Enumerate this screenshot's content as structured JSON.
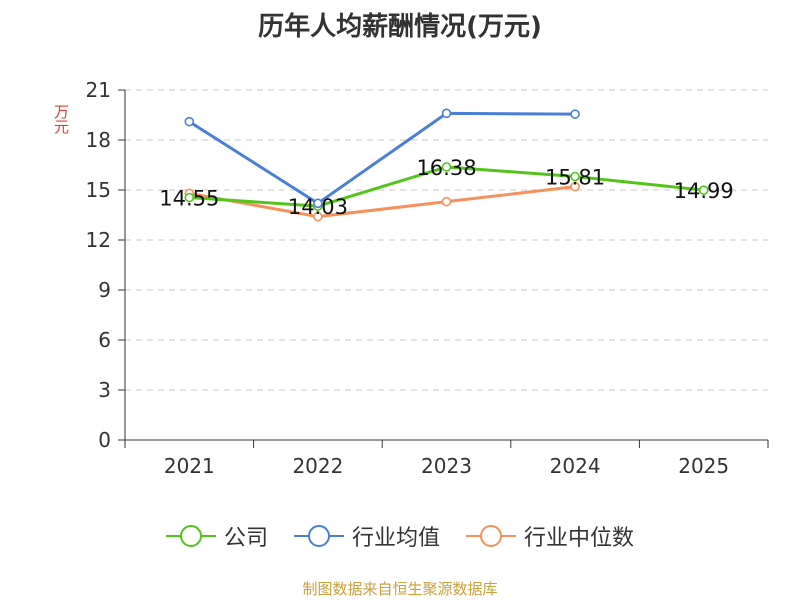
{
  "chart_data": {
    "type": "line",
    "title": "历年人均薪酬情况(万元)",
    "ylabel": "万元",
    "xlabel": "",
    "categories": [
      "2021",
      "2022",
      "2023",
      "2024",
      "2025"
    ],
    "ylim": [
      0,
      21
    ],
    "yticks": [
      0,
      3,
      6,
      9,
      12,
      15,
      18,
      21
    ],
    "grid": true,
    "legend_position": "bottom",
    "series": [
      {
        "name": "公司",
        "color": "#52c41a",
        "values": [
          14.55,
          14.03,
          16.38,
          15.81,
          14.99
        ],
        "labels": [
          "14.55",
          "14.03",
          "16.38",
          "15.81",
          "14.99"
        ]
      },
      {
        "name": "行业均值",
        "color": "#4a7fd6",
        "values": [
          19.1,
          14.2,
          19.6,
          19.55,
          null
        ]
      },
      {
        "name": "行业中位数",
        "color": "#f5915a",
        "values": [
          14.8,
          13.4,
          14.3,
          15.2,
          null
        ]
      }
    ]
  },
  "source": "制图数据来自恒生聚源数据库"
}
